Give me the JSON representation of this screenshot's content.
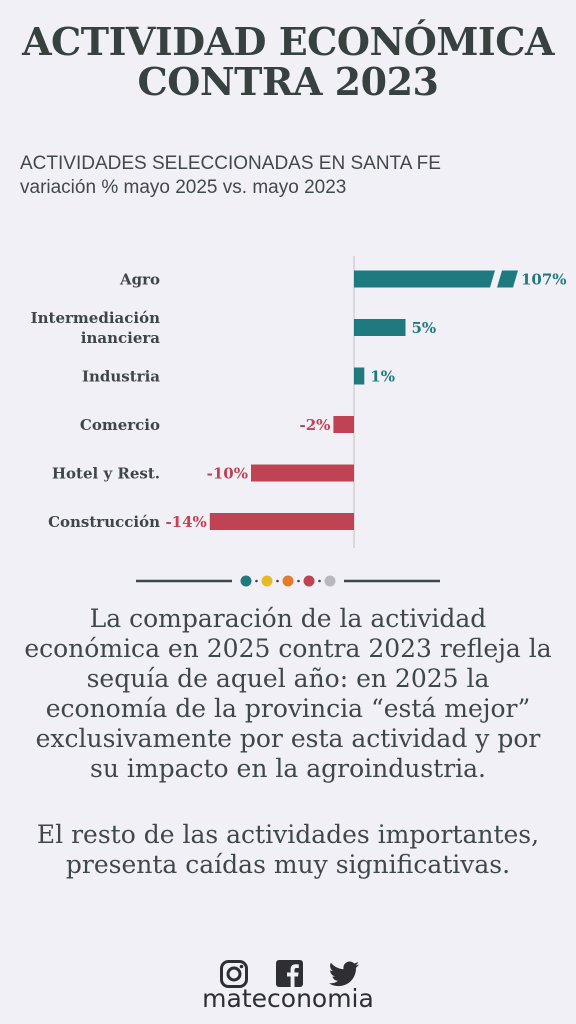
{
  "title": {
    "line1": "ACTIVIDAD ECONÓMICA",
    "line2": "CONTRA 2023"
  },
  "subtitle": {
    "line1": "ACTIVIDADES SELECCIONADAS EN SANTA FE",
    "line2": "variación % mayo 2025 vs. mayo 2023"
  },
  "chart_data": {
    "type": "bar",
    "orientation": "horizontal",
    "categories": [
      "Agro",
      "Intermediación\ninanciera",
      "Industria",
      "Comercio",
      "Hotel y Rest.",
      "Construcción"
    ],
    "values": [
      107,
      5,
      1,
      -2,
      -10,
      -14
    ],
    "value_labels": [
      "107%",
      "5%",
      "1%",
      "-2%",
      "-10%",
      "-14%"
    ],
    "axis_break": "Agro",
    "colors": {
      "positive": "#1f7a80",
      "negative": "#bf4352"
    }
  },
  "divider_dots": [
    "#1f7a80",
    "#e9b928",
    "#e17c2d",
    "#bf4352",
    "#b9b9bd"
  ],
  "body": {
    "p1": "La comparación de la actividad económica en 2025 contra 2023 refleja la sequía de aquel año: en 2025 la economía de la provincia “está mejor” exclusivamente por esta actividad y por su impacto en la agroindustria.",
    "p2": "El resto de las actividades importantes, presenta caídas muy significativas."
  },
  "social_icons": [
    "instagram-icon",
    "facebook-icon",
    "twitter-icon"
  ],
  "brand": "mateconomia"
}
